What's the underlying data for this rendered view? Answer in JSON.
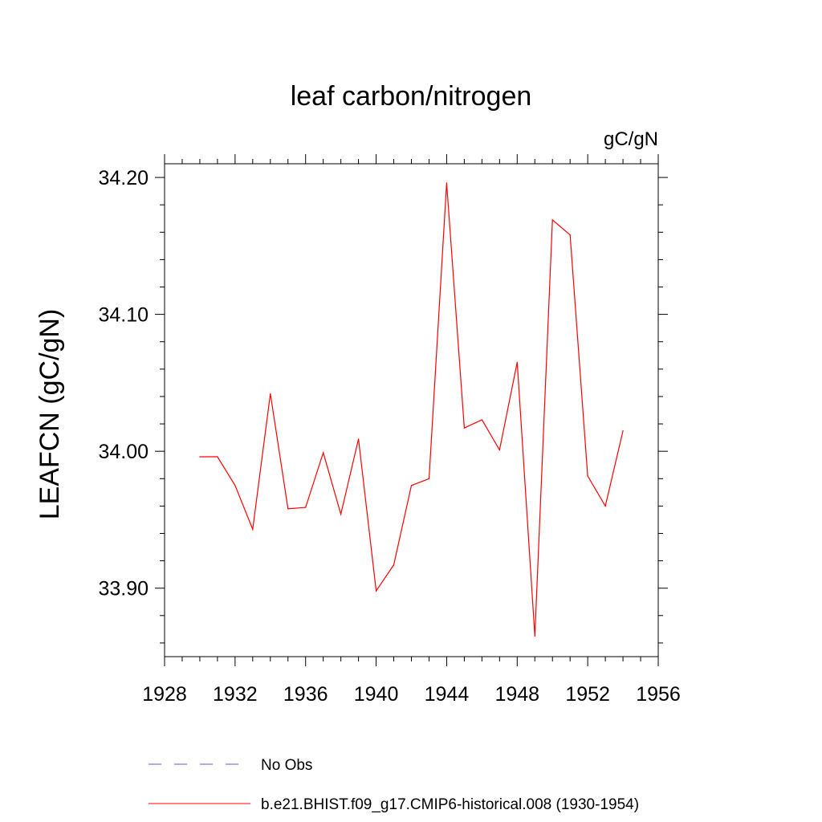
{
  "chart_data": {
    "type": "line",
    "title": "leaf carbon/nitrogen",
    "units_label": "gC/gN",
    "xlabel": "",
    "ylabel": "LEAFCN  (gC/gN)",
    "xlim": [
      1928,
      1956
    ],
    "ylim": [
      33.85,
      34.21
    ],
    "x_ticks": [
      1928,
      1932,
      1936,
      1940,
      1944,
      1948,
      1952,
      1956
    ],
    "x_tick_labels": [
      "1928",
      "1932",
      "1936",
      "1940",
      "1944",
      "1948",
      "1952",
      "1956"
    ],
    "y_ticks": [
      33.9,
      34.0,
      34.1,
      34.2
    ],
    "y_tick_labels": [
      "33.90",
      "34.00",
      "34.10",
      "34.20"
    ],
    "grid": false,
    "legend_position": "bottom",
    "series": [
      {
        "name": "b.e21.BHIST.f09_g17.CMIP6-historical.008 (1930-1954)",
        "color": "#ff0000",
        "style": "solid",
        "x": [
          1930,
          1931,
          1932,
          1933,
          1934,
          1935,
          1936,
          1937,
          1938,
          1939,
          1940,
          1941,
          1942,
          1943,
          1944,
          1945,
          1946,
          1947,
          1948,
          1949,
          1950,
          1951,
          1952,
          1953,
          1954
        ],
        "y": [
          33.996,
          33.996,
          33.975,
          33.943,
          34.042,
          33.958,
          33.959,
          33.999,
          33.954,
          34.009,
          33.898,
          33.917,
          33.975,
          33.98,
          34.196,
          34.017,
          34.023,
          34.001,
          34.065,
          33.865,
          34.169,
          34.158,
          33.982,
          33.96,
          34.015
        ]
      }
    ],
    "legend": [
      {
        "label": "No Obs",
        "color": "#6a5acd",
        "style": "dashed"
      },
      {
        "label": "b.e21.BHIST.f09_g17.CMIP6-historical.008 (1930-1954)",
        "color": "#ff0000",
        "style": "solid"
      }
    ]
  }
}
